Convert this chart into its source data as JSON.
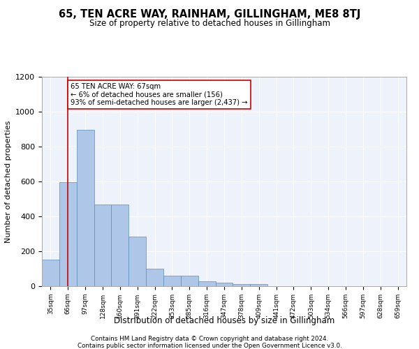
{
  "title": "65, TEN ACRE WAY, RAINHAM, GILLINGHAM, ME8 8TJ",
  "subtitle": "Size of property relative to detached houses in Gillingham",
  "xlabel": "Distribution of detached houses by size in Gillingham",
  "ylabel": "Number of detached properties",
  "bar_color": "#aec6e8",
  "bar_edge_color": "#5b8db8",
  "background_color": "#eef2fa",
  "grid_color": "#ffffff",
  "annotation_box_color": "#cc0000",
  "annotation_line1": "65 TEN ACRE WAY: 67sqm",
  "annotation_line2": "← 6% of detached houses are smaller (156)",
  "annotation_line3": "93% of semi-detached houses are larger (2,437) →",
  "property_line_x": 1,
  "categories": [
    "35sqm",
    "66sqm",
    "97sqm",
    "128sqm",
    "160sqm",
    "191sqm",
    "222sqm",
    "253sqm",
    "285sqm",
    "316sqm",
    "347sqm",
    "378sqm",
    "409sqm",
    "441sqm",
    "472sqm",
    "503sqm",
    "534sqm",
    "566sqm",
    "597sqm",
    "628sqm",
    "659sqm"
  ],
  "values": [
    152,
    595,
    895,
    470,
    470,
    285,
    100,
    62,
    62,
    27,
    20,
    13,
    12,
    0,
    0,
    0,
    0,
    0,
    0,
    0,
    0
  ],
  "ylim": [
    0,
    1200
  ],
  "yticks": [
    0,
    200,
    400,
    600,
    800,
    1000,
    1200
  ],
  "footer1": "Contains HM Land Registry data © Crown copyright and database right 2024.",
  "footer2": "Contains public sector information licensed under the Open Government Licence v3.0."
}
